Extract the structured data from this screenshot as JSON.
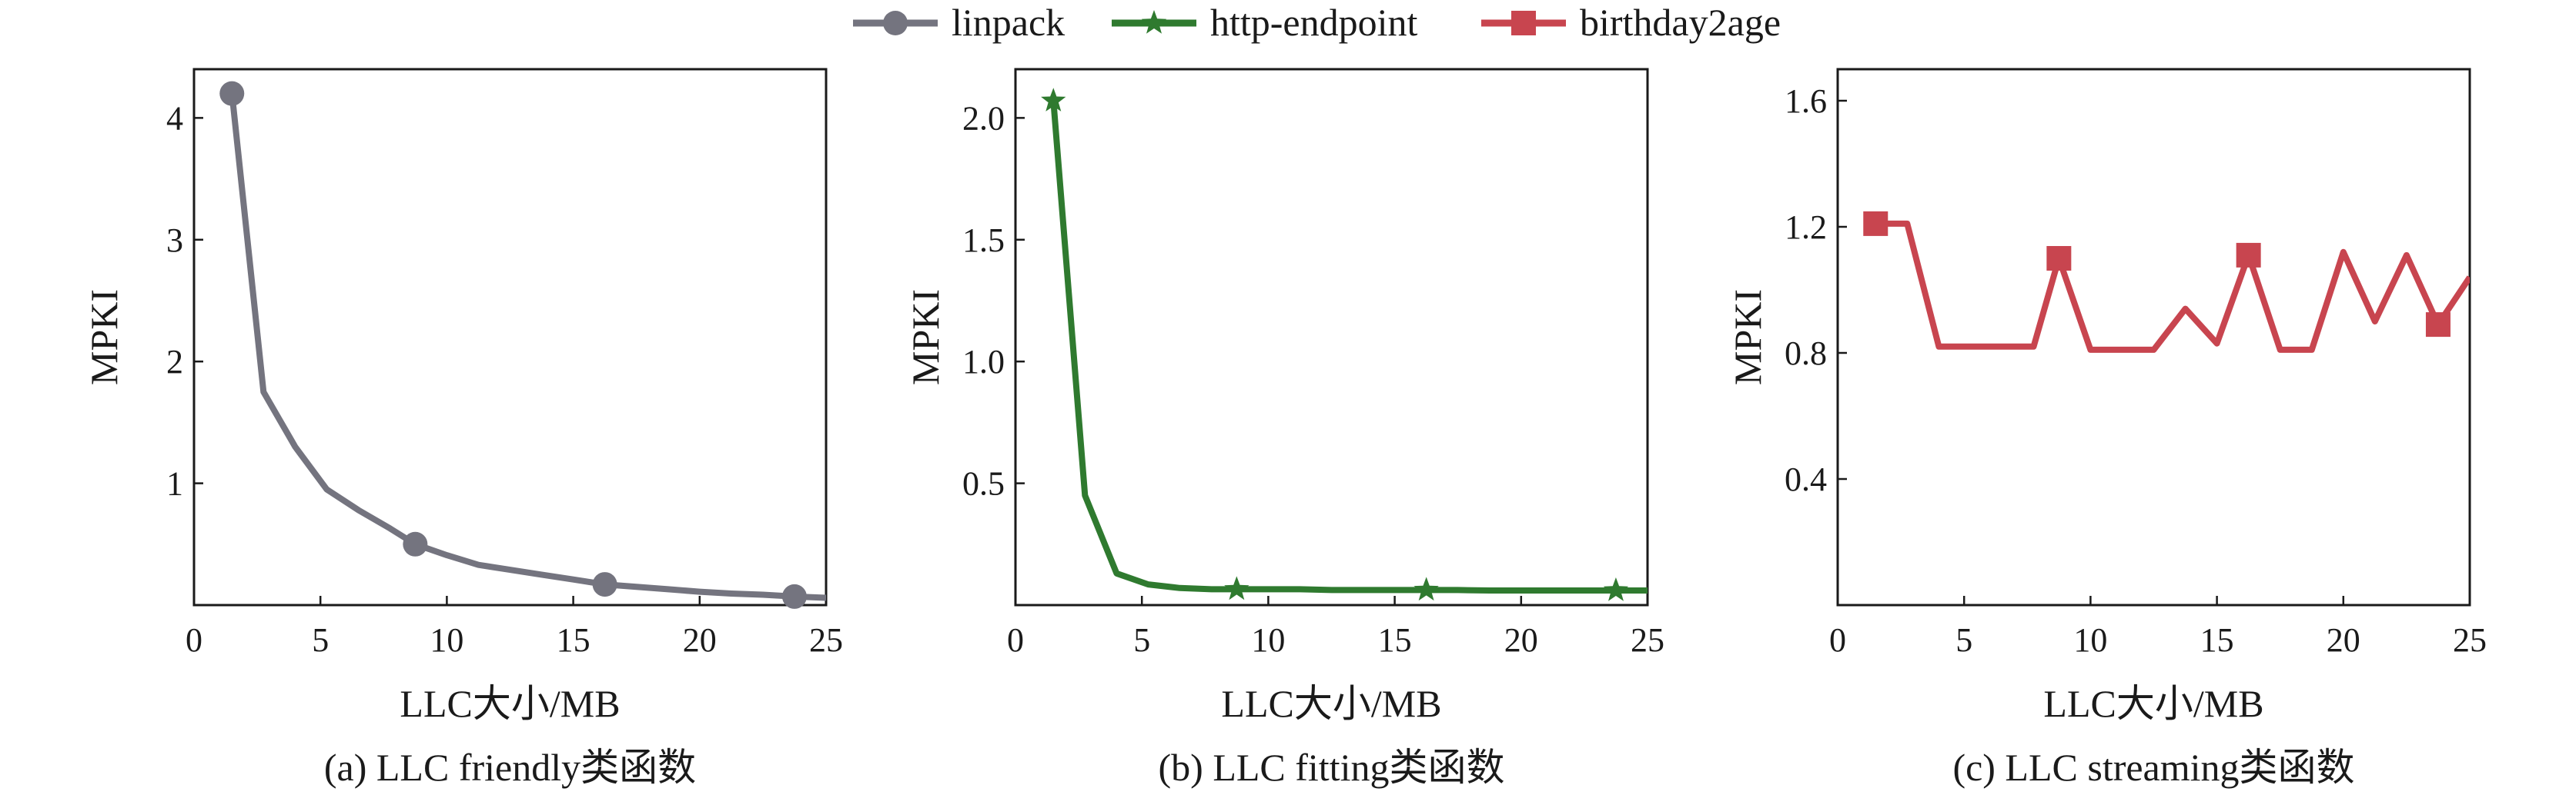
{
  "legend": [
    {
      "name": "linpack",
      "color": "#74747f",
      "marker": "circle"
    },
    {
      "name": "http-endpoint",
      "color": "#2f7a2f",
      "marker": "star"
    },
    {
      "name": "birthday2age",
      "color": "#c8454f",
      "marker": "square"
    }
  ],
  "chart_data": [
    {
      "type": "line",
      "caption": "(a)  LLC friendly类函数",
      "xlabel": "LLC大小/MB",
      "ylabel": "MPKI",
      "xlim": [
        0,
        25
      ],
      "ylim": [
        0,
        4.4
      ],
      "xticks": [
        0,
        5,
        10,
        15,
        20,
        25
      ],
      "yticks": [
        1,
        2,
        3,
        4
      ],
      "grid": false,
      "series": [
        {
          "name": "linpack",
          "color": "#74747f",
          "marker": "circle",
          "x": [
            1.5,
            2.75,
            4,
            5.25,
            6.5,
            7.75,
            8.75,
            10,
            11.25,
            12.5,
            13.75,
            15,
            16.25,
            17.5,
            18.75,
            20,
            21.25,
            22.5,
            23.75,
            25
          ],
          "y": [
            4.2,
            1.75,
            1.3,
            0.95,
            0.78,
            0.63,
            0.5,
            0.41,
            0.33,
            0.29,
            0.25,
            0.21,
            0.17,
            0.15,
            0.13,
            0.11,
            0.095,
            0.085,
            0.07,
            0.06
          ],
          "markers_at": [
            0,
            6,
            12,
            18
          ]
        }
      ]
    },
    {
      "type": "line",
      "caption": "(b)  LLC fitting类函数",
      "xlabel": "LLC大小/MB",
      "ylabel": "MPKI",
      "xlim": [
        0,
        25
      ],
      "ylim": [
        0,
        2.2
      ],
      "xticks": [
        0,
        5,
        10,
        15,
        20,
        25
      ],
      "yticks": [
        0.5,
        1.0,
        1.5,
        2.0
      ],
      "ytick_labels": [
        "0.5",
        "1.0",
        "1.5",
        "2.0"
      ],
      "grid": false,
      "series": [
        {
          "name": "http-endpoint",
          "color": "#2f7a2f",
          "marker": "star",
          "x": [
            1.5,
            2.75,
            4,
            5.25,
            6.5,
            7.75,
            8.75,
            10,
            11.25,
            12.5,
            13.75,
            15,
            16.25,
            17.5,
            18.75,
            20,
            21.25,
            22.5,
            23.75,
            25
          ],
          "y": [
            2.07,
            0.45,
            0.13,
            0.085,
            0.07,
            0.065,
            0.065,
            0.065,
            0.065,
            0.062,
            0.062,
            0.062,
            0.062,
            0.062,
            0.06,
            0.06,
            0.06,
            0.06,
            0.06,
            0.06
          ],
          "markers_at": [
            0,
            6,
            12,
            18
          ]
        }
      ]
    },
    {
      "type": "line",
      "caption": "(c)  LLC streaming类函数",
      "xlabel": "LLC大小/MB",
      "ylabel": "MPKI",
      "xlim": [
        0,
        25
      ],
      "ylim": [
        0,
        1.7
      ],
      "xticks": [
        0,
        5,
        10,
        15,
        20,
        25
      ],
      "yticks": [
        0.4,
        0.8,
        1.2,
        1.6
      ],
      "ytick_labels": [
        "0.4",
        "0.8",
        "1.2",
        "1.6"
      ],
      "grid": false,
      "series": [
        {
          "name": "birthday2age",
          "color": "#c8454f",
          "marker": "square",
          "x": [
            1.5,
            2.75,
            4,
            5.25,
            6.5,
            7.75,
            8.75,
            10,
            11.25,
            12.5,
            13.75,
            15,
            16.25,
            17.5,
            18.75,
            20,
            21.25,
            22.5,
            23.75,
            25
          ],
          "y": [
            1.21,
            1.21,
            0.82,
            0.82,
            0.82,
            0.82,
            1.1,
            0.81,
            0.81,
            0.81,
            0.94,
            0.83,
            1.11,
            0.81,
            0.81,
            1.12,
            0.9,
            1.11,
            0.89,
            1.04
          ],
          "markers_at": [
            0,
            6,
            12,
            18
          ]
        }
      ]
    }
  ]
}
